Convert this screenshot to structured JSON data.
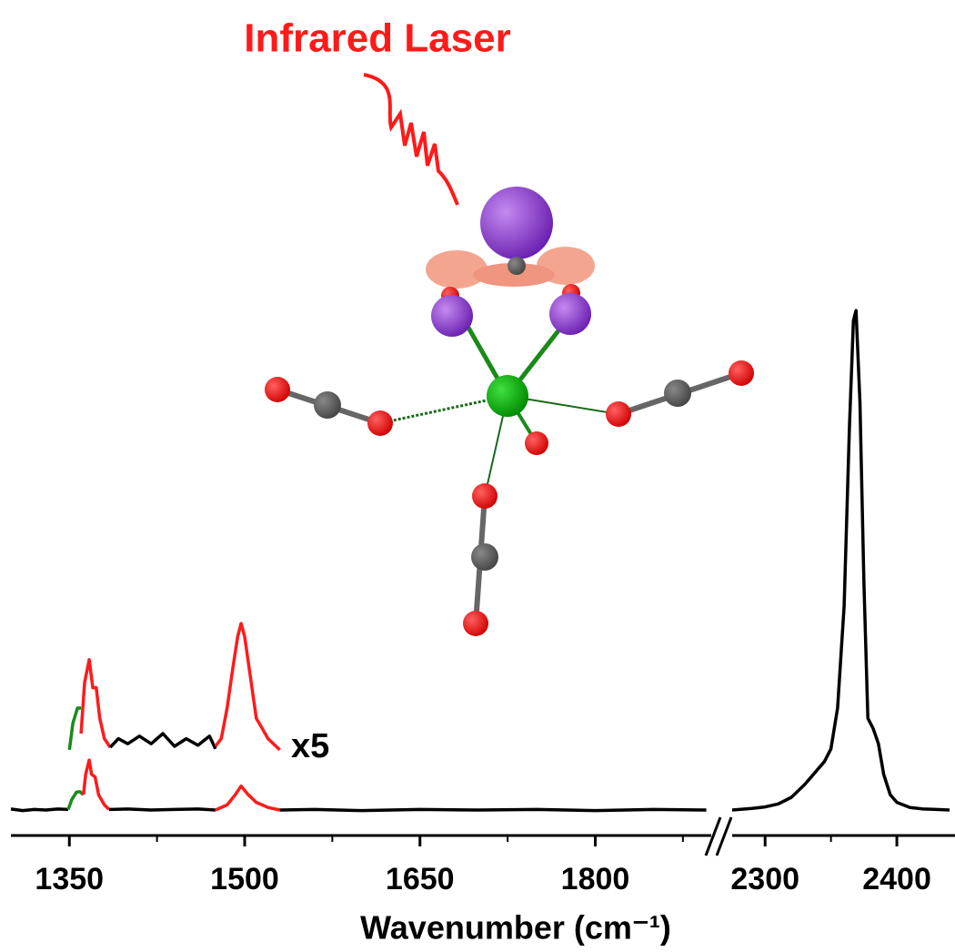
{
  "chart_data": {
    "type": "line",
    "title": "Infrared Laser",
    "xlabel": "Wavenumber (cm⁻¹)",
    "annotation": "x5",
    "ylim": [
      0,
      100
    ],
    "x_segments": [
      {
        "xlim": [
          1300,
          1900
        ],
        "xticks": [
          1350,
          1500,
          1650,
          1800
        ],
        "xminorticks": [
          1425,
          1575,
          1725,
          1875
        ]
      },
      {
        "xlim": [
          2275,
          2440
        ],
        "xticks": [
          2300,
          2400
        ],
        "xminorticks": [
          2350
        ]
      }
    ],
    "series": [
      {
        "color": "#000000",
        "segment": 0,
        "x": [
          1300,
          1310,
          1320,
          1330,
          1340,
          1349
        ],
        "values": [
          0.2,
          -0.1,
          0.1,
          0,
          0.2,
          0.1
        ]
      },
      {
        "color": "#1a8a1a",
        "segment": 0,
        "x": [
          1349,
          1352,
          1356,
          1359,
          1362
        ],
        "values": [
          0.1,
          2,
          3.5,
          3.6,
          3
        ]
      },
      {
        "color": "#ff1a1a",
        "segment": 0,
        "x": [
          1362,
          1364,
          1367,
          1369,
          1372,
          1375,
          1380,
          1384
        ],
        "values": [
          3,
          7,
          9.8,
          7,
          6.5,
          3,
          1,
          0.1
        ]
      },
      {
        "color": "#000000",
        "segment": 0,
        "x": [
          1384,
          1400,
          1420,
          1440,
          1460,
          1475
        ],
        "values": [
          0.1,
          0.2,
          0,
          0.1,
          0.2,
          0
        ]
      },
      {
        "color": "#ff1a1a",
        "segment": 0,
        "x": [
          1475,
          1485,
          1492,
          1497,
          1503,
          1510,
          1520,
          1530
        ],
        "values": [
          0,
          1,
          3,
          4.7,
          3,
          1.5,
          0.5,
          0
        ]
      },
      {
        "color": "#000000",
        "segment": 0,
        "x": [
          1530,
          1560,
          1600,
          1650,
          1700,
          1750,
          1800,
          1850,
          1895
        ],
        "values": [
          0,
          0.1,
          -0.1,
          0.1,
          0,
          0.1,
          -0.1,
          0.1,
          0
        ]
      },
      {
        "color": "#1a8a1a",
        "segment": 0,
        "x": [
          1350,
          1353,
          1357,
          1360
        ],
        "values": [
          11.8,
          17,
          20,
          20
        ]
      },
      {
        "color": "#ff1a1a",
        "segment": 0,
        "x": [
          1360,
          1363,
          1367,
          1370,
          1373,
          1376,
          1380,
          1385
        ],
        "values": [
          15,
          25,
          29.5,
          24,
          24,
          18,
          14,
          12.3
        ]
      },
      {
        "color": "#000000",
        "segment": 0,
        "x": [
          1385,
          1392,
          1400,
          1410,
          1420,
          1430,
          1440,
          1450,
          1460,
          1470,
          1475
        ],
        "values": [
          12.3,
          14,
          13,
          14.5,
          13,
          15,
          12.5,
          14,
          12.7,
          14.5,
          12
        ]
      },
      {
        "color": "#ff1a1a",
        "segment": 0,
        "x": [
          1475,
          1480,
          1485,
          1490,
          1494,
          1497,
          1500,
          1505,
          1510,
          1515,
          1520,
          1530
        ],
        "values": [
          12.5,
          14,
          20,
          28,
          34,
          36.6,
          34,
          26,
          18,
          16,
          14,
          11.8
        ]
      },
      {
        "color": "#000000",
        "segment": 1,
        "x": [
          2275,
          2290,
          2300,
          2310,
          2320,
          2330,
          2340,
          2345,
          2350,
          2355,
          2360,
          2364,
          2367,
          2369,
          2372,
          2375,
          2378,
          2382,
          2386,
          2390,
          2395,
          2400,
          2410,
          2420,
          2430,
          2440
        ],
        "values": [
          0,
          0.3,
          0.6,
          1.2,
          2.5,
          5,
          8,
          9.5,
          12,
          20,
          40,
          75,
          96,
          98,
          80,
          45,
          18,
          16,
          13,
          7,
          3,
          1.5,
          0.5,
          0.2,
          0.1,
          0
        ]
      }
    ]
  }
}
